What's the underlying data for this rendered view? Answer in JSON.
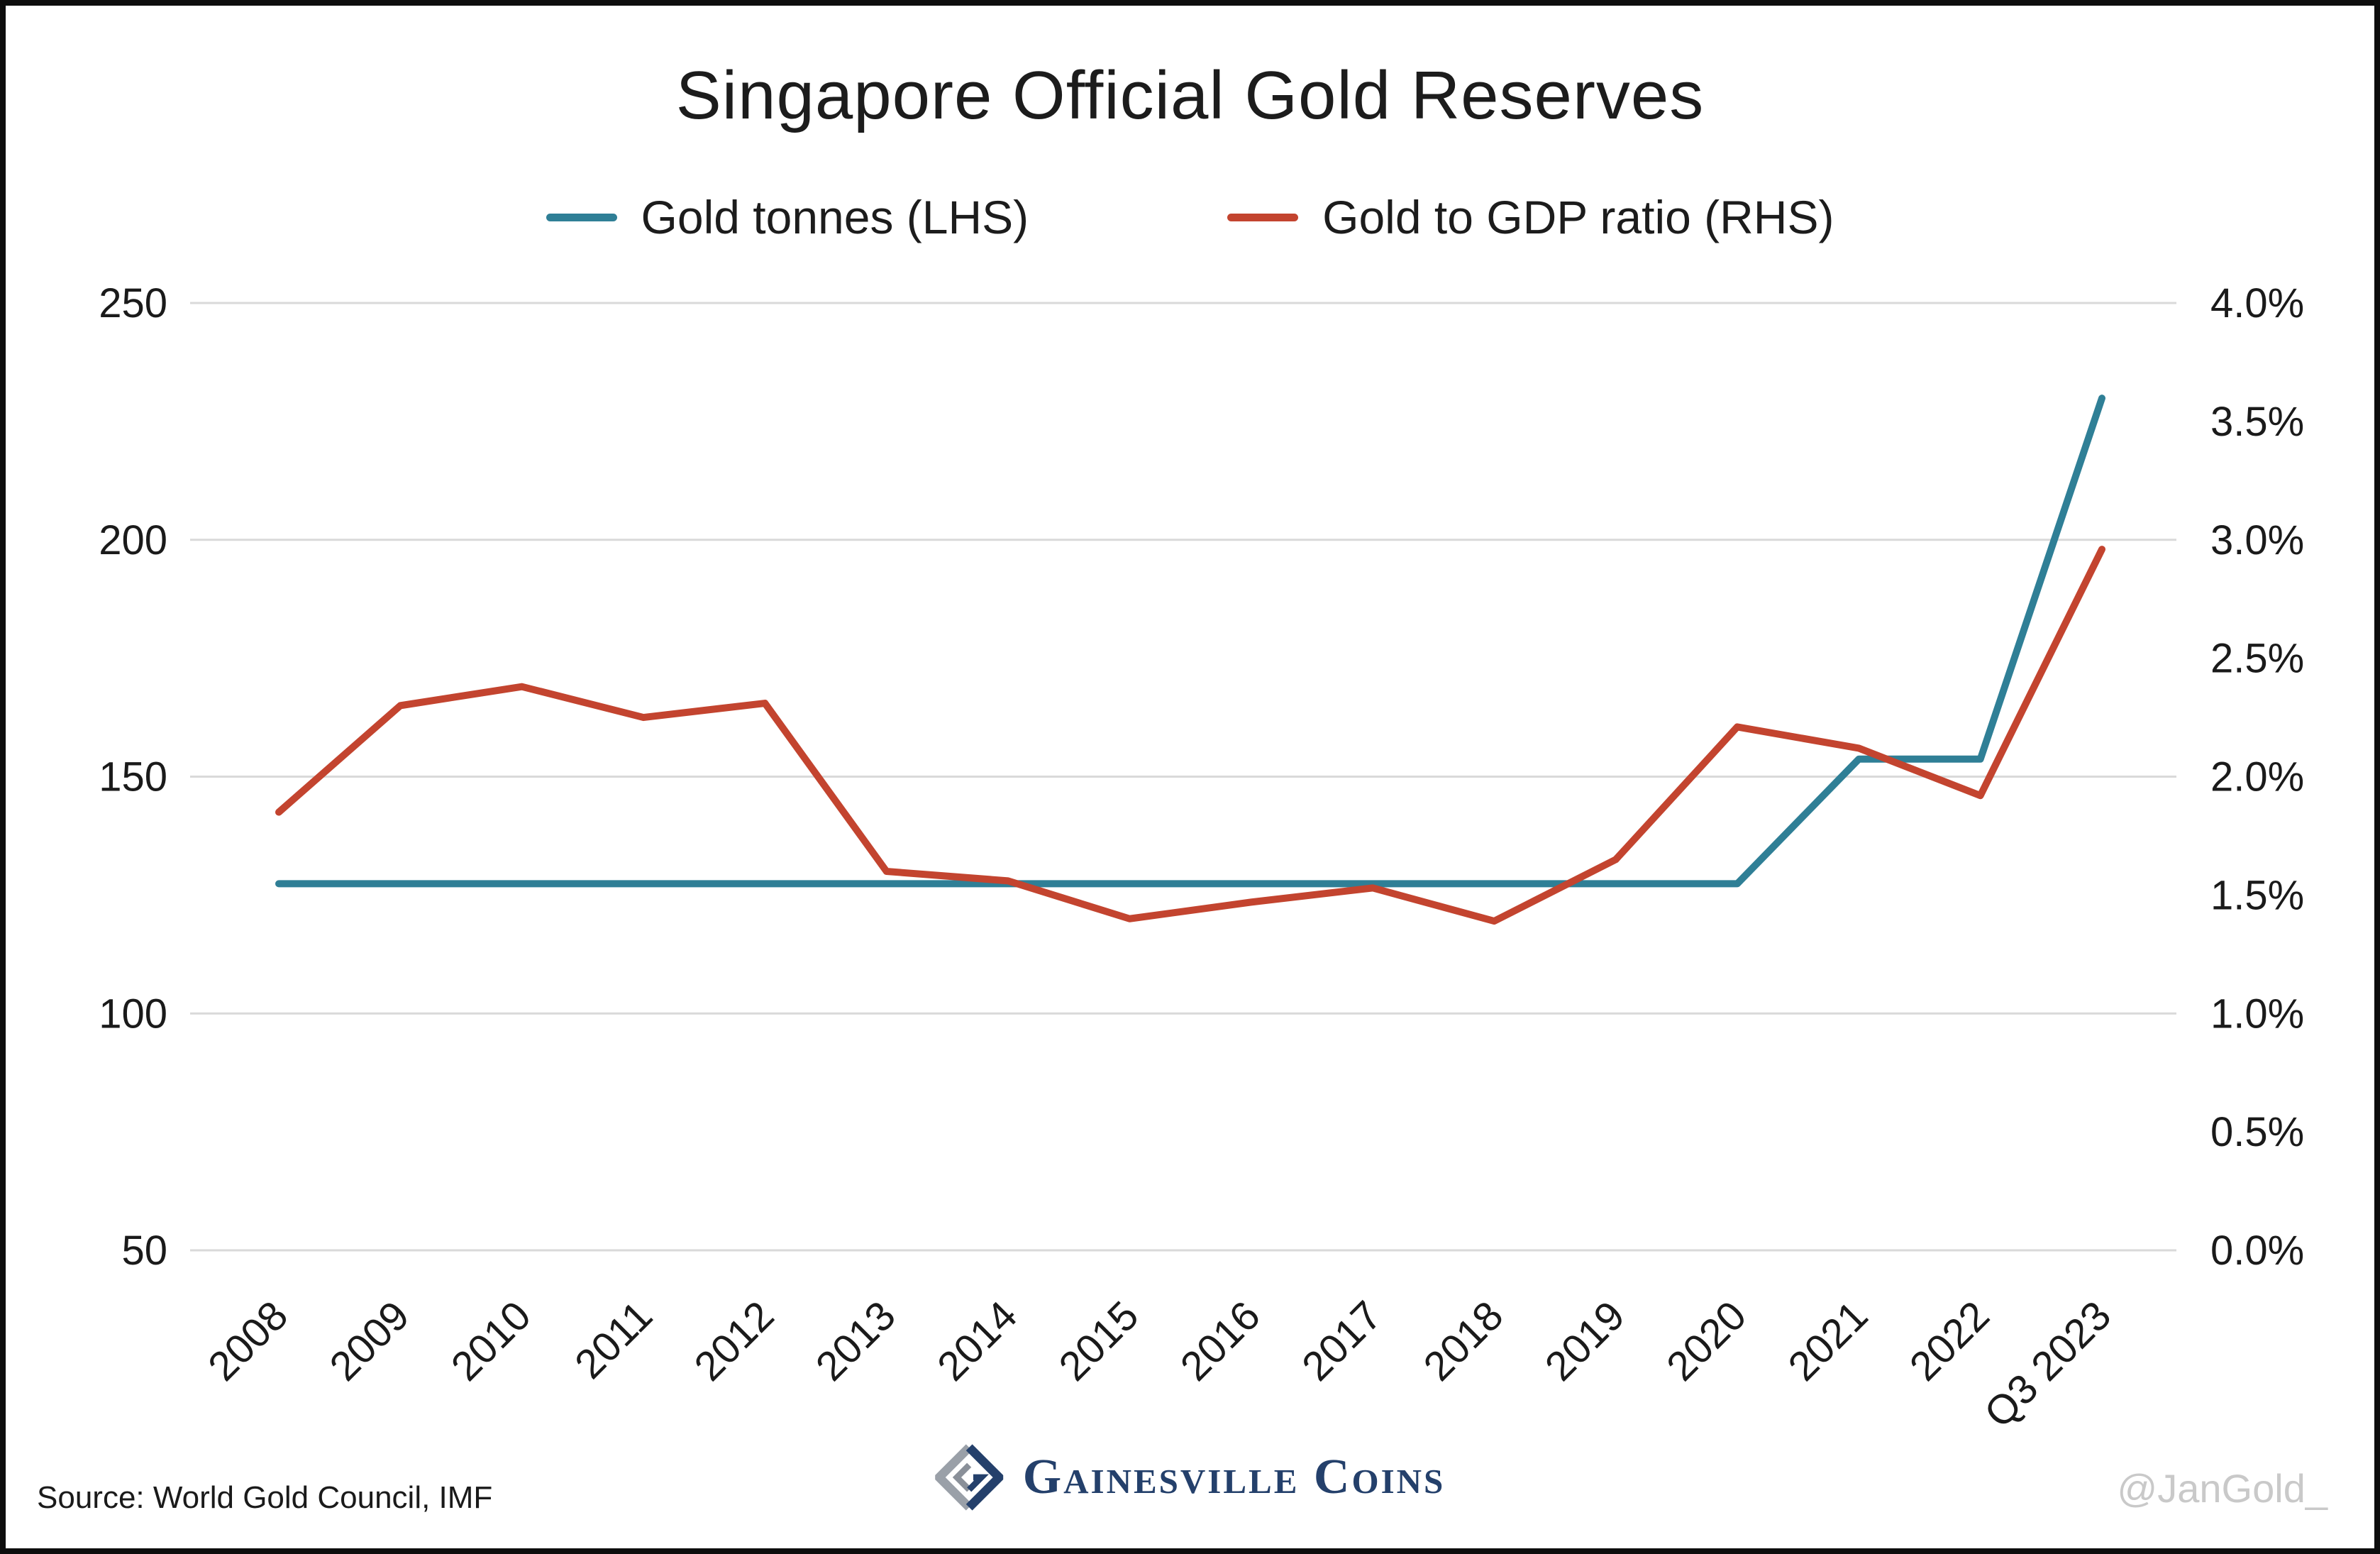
{
  "title": "Singapore Official Gold Reserves",
  "legend": [
    {
      "label": "Gold tonnes (LHS)",
      "color": "#2f7f96"
    },
    {
      "label": "Gold to GDP ratio (RHS)",
      "color": "#c3442f"
    }
  ],
  "source": "Source: World Gold Council, IMF",
  "brand": "Gainesville Coins",
  "watermark": "@JanGold_",
  "chart_data": {
    "type": "line",
    "title": "Singapore Official Gold Reserves",
    "xlabel": "",
    "ylabel_left": "Gold tonnes",
    "ylabel_right": "Gold to GDP ratio",
    "grid": "horizontal",
    "legend_position": "top",
    "categories": [
      "2008",
      "2009",
      "2010",
      "2011",
      "2012",
      "2013",
      "2014",
      "2015",
      "2016",
      "2017",
      "2018",
      "2019",
      "2020",
      "2021",
      "2022",
      "Q3 2023"
    ],
    "series": [
      {
        "name": "Gold tonnes (LHS)",
        "axis": "left",
        "color": "#2f7f96",
        "values": [
          127.4,
          127.4,
          127.4,
          127.4,
          127.4,
          127.4,
          127.4,
          127.4,
          127.4,
          127.4,
          127.4,
          127.4,
          127.4,
          153.7,
          153.7,
          229.9
        ]
      },
      {
        "name": "Gold to GDP ratio (RHS)",
        "axis": "right",
        "color": "#c3442f",
        "values": [
          1.85,
          2.3,
          2.38,
          2.25,
          2.31,
          1.6,
          1.56,
          1.4,
          1.47,
          1.53,
          1.39,
          1.65,
          2.21,
          2.12,
          1.92,
          2.96
        ]
      }
    ],
    "left_axis": {
      "min": 50,
      "max": 250,
      "ticks": [
        "250",
        "200",
        "150",
        "100",
        "50"
      ],
      "tick_values": [
        250,
        200,
        150,
        100,
        50
      ]
    },
    "right_axis": {
      "min": 0.0,
      "max": 4.0,
      "ticks": [
        "4.0%",
        "3.5%",
        "3.0%",
        "2.5%",
        "2.0%",
        "1.5%",
        "1.0%",
        "0.5%",
        "0.0%"
      ],
      "tick_values": [
        4.0,
        3.5,
        3.0,
        2.5,
        2.0,
        1.5,
        1.0,
        0.5,
        0.0
      ]
    }
  },
  "colors": {
    "gridline": "#d9d9d9",
    "text": "#1a1a1a",
    "brand_navy": "#24406b",
    "watermark_gray": "#c9c9c9"
  }
}
